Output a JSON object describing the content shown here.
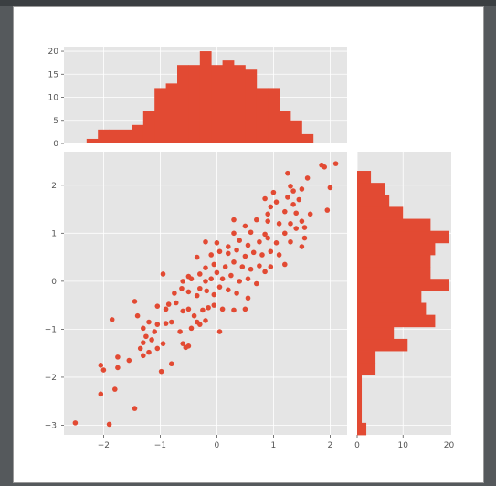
{
  "colors": {
    "panel_bg": "#e5e5e5",
    "grid": "#ffffff",
    "accent": "#e24a33",
    "tick_label": "#555555"
  },
  "chart_data": [
    {
      "type": "scatter",
      "xlim": [
        -2.7,
        2.3
      ],
      "ylim": [
        -3.2,
        2.7
      ],
      "x_ticks": [
        -2,
        -1,
        0,
        1,
        2
      ],
      "x_tick_labels": [
        "−2",
        "−1",
        "0",
        "1",
        "2"
      ],
      "y_ticks": [
        -3,
        -2,
        -1,
        0,
        1,
        2
      ],
      "y_tick_labels": [
        "−3",
        "−2",
        "−1",
        "0",
        "1",
        "2"
      ],
      "grid": true,
      "points": [
        [
          -2.5,
          -2.95
        ],
        [
          -1.9,
          -2.98
        ],
        [
          -1.45,
          -2.65
        ],
        [
          -2.05,
          -2.35
        ],
        [
          -1.8,
          -2.25
        ],
        [
          -2.05,
          -1.75
        ],
        [
          -2.0,
          -1.85
        ],
        [
          -1.75,
          -1.8
        ],
        [
          -1.75,
          -1.58
        ],
        [
          -1.55,
          -1.65
        ],
        [
          -0.98,
          -1.88
        ],
        [
          -0.8,
          -1.72
        ],
        [
          -1.3,
          -1.55
        ],
        [
          -1.35,
          -1.4
        ],
        [
          -1.2,
          -1.48
        ],
        [
          -1.05,
          -1.4
        ],
        [
          -0.95,
          -1.3
        ],
        [
          -1.3,
          -1.28
        ],
        [
          -1.15,
          -1.22
        ],
        [
          -0.6,
          -1.3
        ],
        [
          -0.5,
          -1.35
        ],
        [
          -0.55,
          -1.38
        ],
        [
          -1.25,
          -1.15
        ],
        [
          -1.1,
          -1.05
        ],
        [
          -1.3,
          -0.98
        ],
        [
          -1.2,
          -0.85
        ],
        [
          -1.05,
          -0.9
        ],
        [
          -0.9,
          -0.88
        ],
        [
          -0.8,
          -0.85
        ],
        [
          -0.65,
          -1.05
        ],
        [
          -0.45,
          -0.98
        ],
        [
          -0.35,
          -0.85
        ],
        [
          -0.3,
          -0.9
        ],
        [
          -0.2,
          -0.82
        ],
        [
          0.05,
          -1.05
        ],
        [
          -1.85,
          -0.8
        ],
        [
          -1.4,
          -0.72
        ],
        [
          -1.45,
          -0.42
        ],
        [
          -1.05,
          -0.52
        ],
        [
          -0.9,
          -0.58
        ],
        [
          -0.85,
          -0.48
        ],
        [
          -0.72,
          -0.45
        ],
        [
          -0.6,
          -0.62
        ],
        [
          -0.5,
          -0.58
        ],
        [
          -0.4,
          -0.72
        ],
        [
          -0.25,
          -0.6
        ],
        [
          -0.15,
          -0.55
        ],
        [
          -0.05,
          -0.5
        ],
        [
          0.1,
          -0.58
        ],
        [
          0.3,
          -0.6
        ],
        [
          0.5,
          -0.58
        ],
        [
          -0.75,
          -0.25
        ],
        [
          -0.62,
          -0.15
        ],
        [
          -0.5,
          -0.22
        ],
        [
          -0.35,
          -0.3
        ],
        [
          -0.3,
          -0.15
        ],
        [
          -0.18,
          -0.2
        ],
        [
          -0.05,
          -0.28
        ],
        [
          0.05,
          -0.12
        ],
        [
          0.2,
          -0.18
        ],
        [
          0.35,
          -0.25
        ],
        [
          0.55,
          -0.35
        ],
        [
          -0.6,
          0.0
        ],
        [
          -0.5,
          0.1
        ],
        [
          -0.45,
          0.05
        ],
        [
          -0.3,
          0.15
        ],
        [
          -0.2,
          0.0
        ],
        [
          -0.1,
          0.05
        ],
        [
          0.0,
          0.18
        ],
        [
          0.1,
          0.05
        ],
        [
          0.25,
          0.12
        ],
        [
          0.4,
          0.0
        ],
        [
          0.55,
          0.05
        ],
        [
          0.7,
          -0.05
        ],
        [
          -0.95,
          0.15
        ],
        [
          -0.2,
          0.28
        ],
        [
          -0.05,
          0.35
        ],
        [
          0.15,
          0.3
        ],
        [
          0.3,
          0.4
        ],
        [
          0.45,
          0.3
        ],
        [
          0.6,
          0.25
        ],
        [
          0.75,
          0.32
        ],
        [
          0.85,
          0.2
        ],
        [
          0.95,
          0.3
        ],
        [
          1.2,
          0.35
        ],
        [
          -0.35,
          0.5
        ],
        [
          -0.1,
          0.55
        ],
        [
          0.05,
          0.62
        ],
        [
          0.2,
          0.58
        ],
        [
          0.35,
          0.65
        ],
        [
          0.5,
          0.52
        ],
        [
          0.65,
          0.6
        ],
        [
          0.8,
          0.55
        ],
        [
          0.95,
          0.62
        ],
        [
          1.1,
          0.55
        ],
        [
          -0.2,
          0.82
        ],
        [
          0.0,
          0.8
        ],
        [
          0.2,
          0.72
        ],
        [
          0.4,
          0.85
        ],
        [
          0.55,
          0.75
        ],
        [
          0.75,
          0.82
        ],
        [
          0.9,
          0.9
        ],
        [
          1.05,
          0.8
        ],
        [
          1.3,
          0.82
        ],
        [
          1.5,
          0.72
        ],
        [
          1.55,
          0.9
        ],
        [
          0.3,
          1.0
        ],
        [
          0.6,
          1.02
        ],
        [
          0.85,
          0.98
        ],
        [
          1.2,
          1.0
        ],
        [
          1.4,
          1.1
        ],
        [
          1.55,
          1.12
        ],
        [
          0.5,
          1.15
        ],
        [
          0.7,
          1.28
        ],
        [
          0.9,
          1.25
        ],
        [
          1.1,
          1.2
        ],
        [
          1.3,
          1.2
        ],
        [
          1.5,
          1.25
        ],
        [
          0.3,
          1.28
        ],
        [
          1.4,
          1.42
        ],
        [
          1.2,
          1.45
        ],
        [
          0.95,
          1.55
        ],
        [
          1.65,
          1.4
        ],
        [
          1.95,
          1.48
        ],
        [
          0.85,
          1.72
        ],
        [
          1.05,
          1.65
        ],
        [
          1.25,
          1.75
        ],
        [
          1.45,
          1.7
        ],
        [
          1.35,
          1.6
        ],
        [
          1.0,
          1.85
        ],
        [
          1.3,
          1.98
        ],
        [
          1.5,
          1.92
        ],
        [
          1.35,
          1.88
        ],
        [
          1.6,
          2.15
        ],
        [
          1.25,
          2.25
        ],
        [
          1.9,
          2.38
        ],
        [
          1.85,
          2.42
        ],
        [
          2.0,
          1.95
        ],
        [
          2.1,
          2.45
        ],
        [
          0.9,
          1.4
        ]
      ]
    },
    {
      "type": "bar",
      "orientation": "vertical",
      "bin_edges": [
        -2.3,
        -2.1,
        -1.9,
        -1.7,
        -1.5,
        -1.3,
        -1.1,
        -0.9,
        -0.7,
        -0.5,
        -0.3,
        -0.1,
        0.1,
        0.3,
        0.5,
        0.7,
        0.9,
        1.1,
        1.3,
        1.5,
        1.7
      ],
      "values": [
        1,
        3,
        3,
        3,
        4,
        7,
        12,
        13,
        17,
        17,
        20,
        17,
        18,
        17,
        16,
        12,
        12,
        7,
        5,
        2
      ],
      "xlim": [
        -2.7,
        2.3
      ],
      "ylim": [
        0,
        21
      ],
      "y_ticks": [
        0,
        5,
        10,
        15,
        20
      ],
      "y_tick_labels": [
        "0",
        "5",
        "10",
        "15",
        "20"
      ],
      "grid": true
    },
    {
      "type": "bar",
      "orientation": "horizontal",
      "bin_edges": [
        -3.2,
        -2.95,
        -2.7,
        -2.45,
        -2.2,
        -1.95,
        -1.7,
        -1.45,
        -1.2,
        -0.95,
        -0.7,
        -0.45,
        -0.2,
        0.05,
        0.3,
        0.55,
        0.8,
        1.05,
        1.3,
        1.55,
        1.8,
        2.05,
        2.3
      ],
      "values": [
        2,
        1,
        1,
        1,
        1,
        4,
        4,
        11,
        8,
        17,
        15,
        14,
        20,
        16,
        16,
        17,
        20,
        16,
        10,
        7,
        6,
        3
      ],
      "xlim": [
        0,
        20.5
      ],
      "ylim": [
        -3.2,
        2.7
      ],
      "x_ticks": [
        0,
        10,
        20
      ],
      "x_tick_labels": [
        "0",
        "10",
        "20"
      ],
      "grid": true
    }
  ]
}
